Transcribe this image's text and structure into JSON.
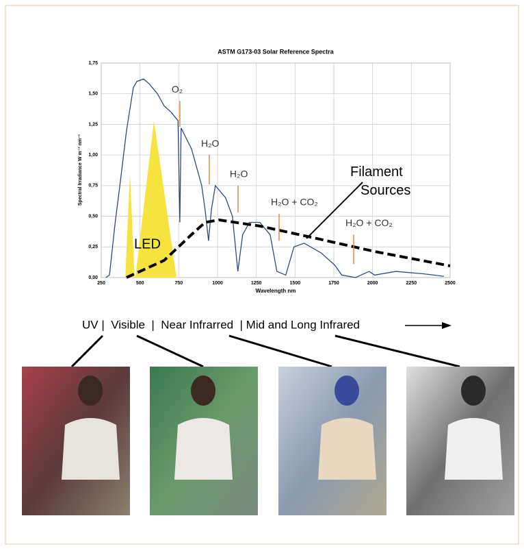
{
  "chart_data": {
    "type": "line",
    "title": "ASTM G173-03 Solar Reference Spectra",
    "x_label": "Wavelength nm",
    "y_label": "Spectral Irradiance W m⁻² nm⁻¹",
    "xlim": [
      250,
      2500
    ],
    "ylim": [
      0,
      1.75
    ],
    "xticks": [
      250,
      500,
      750,
      1000,
      1250,
      1500,
      1750,
      2000,
      2250,
      2500
    ],
    "yticks": [
      {
        "value": 0,
        "label": "0,00"
      },
      {
        "value": 0.25,
        "label": "0,25"
      },
      {
        "value": 0.5,
        "label": "0,50"
      },
      {
        "value": 0.75,
        "label": "0,75"
      },
      {
        "value": 1,
        "label": "1,00"
      },
      {
        "value": 1.25,
        "label": "1,25"
      },
      {
        "value": 1.5,
        "label": "1,50"
      },
      {
        "value": 1.75,
        "label": "1,75"
      }
    ],
    "grid": true,
    "series": [
      {
        "color": "#2a4a7a",
        "kind": "line",
        "x": [
          280,
          303,
          340,
          370,
          413,
          457,
          480,
          523,
          560,
          612,
          656,
          700,
          745,
          757,
          765,
          832,
          898,
          920,
          942,
          960,
          986,
          1052,
          1096,
          1131,
          1162,
          1206,
          1273,
          1339,
          1383,
          1440,
          1493,
          1559,
          1669,
          1757,
          1801,
          1890,
          1978,
          2013,
          2150,
          2330,
          2460
        ],
        "values": [
          0,
          0.02,
          0.45,
          0.75,
          1.2,
          1.55,
          1.6,
          1.62,
          1.58,
          1.5,
          1.4,
          1.35,
          1.28,
          0.45,
          1.22,
          1.05,
          0.75,
          0.55,
          0.3,
          0.55,
          0.75,
          0.65,
          0.5,
          0.05,
          0.35,
          0.45,
          0.45,
          0.35,
          0.05,
          0.02,
          0.25,
          0.28,
          0.2,
          0.1,
          0.02,
          0,
          0.05,
          0.02,
          0.05,
          0.03,
          0.01
        ]
      },
      {
        "name": "LED",
        "color": "#f7e340",
        "kind": "area",
        "x": [
          405,
          435,
          465,
          470,
          590,
          735
        ],
        "values": [
          0,
          0.85,
          0,
          0,
          1.28,
          0
        ]
      },
      {
        "name": "Filament Sources",
        "color": "#000000",
        "kind": "dashed",
        "x": [
          413,
          656,
          832,
          920,
          1008,
          1273,
          1581,
          2022,
          2500
        ],
        "values": [
          0,
          0.14,
          0.35,
          0.45,
          0.47,
          0.42,
          0.335,
          0.21,
          0.095
        ]
      }
    ],
    "annotations": [
      {
        "text": "O₂",
        "x": 757,
        "y_top": 1.44,
        "y_bottom": 1.23
      },
      {
        "text": "H₂O",
        "x": 947,
        "y_top": 1,
        "y_bottom": 0.76
      },
      {
        "text": "H₂O",
        "x": 1132,
        "y_top": 0.75,
        "y_bottom": 0.53
      },
      {
        "text": "H₂O + CO₂",
        "x": 1397,
        "y_top": 0.52,
        "y_bottom": 0.3
      },
      {
        "text": "H₂O + CO₂",
        "x": 1878,
        "y_top": 0.35,
        "y_bottom": 0.11
      }
    ]
  },
  "bands": "UV |  Visible  |  Near Infrarred  | Mid and Long Infrared"
}
